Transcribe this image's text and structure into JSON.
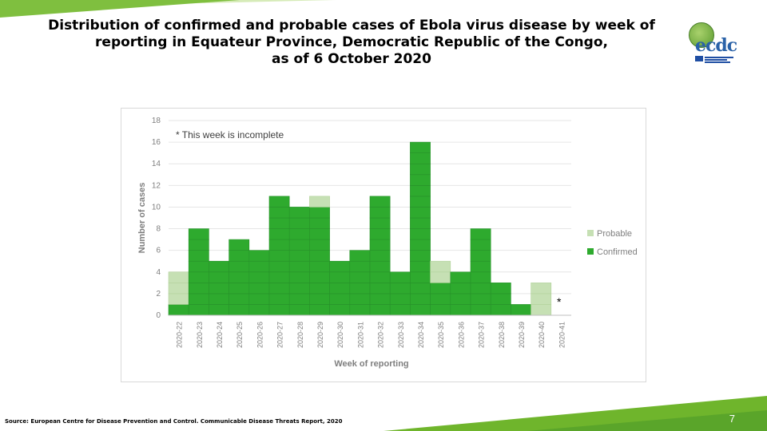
{
  "slide": {
    "title": "Distribution of confirmed and probable cases of Ebola virus disease by week of\nreporting in Equateur Province, Democratic Republic of the Congo,\nas of 6 October 2020",
    "source": "Source: European Centre for Disease Prevention and Control. Communicable Disease Threats Report, 2020",
    "page_number": "7",
    "logo_text": "ecdc"
  },
  "chart_data": {
    "type": "bar",
    "stacked": true,
    "title": "",
    "annotation": "* This week is incomplete",
    "incomplete_marker": "*",
    "xlabel": "Week of reporting",
    "ylabel": "Number of cases",
    "ylim": [
      0,
      18
    ],
    "yticks": [
      0,
      2,
      4,
      6,
      8,
      10,
      12,
      14,
      16,
      18
    ],
    "grid": true,
    "legend_position": "right",
    "categories": [
      "2020-22",
      "2020-23",
      "2020-24",
      "2020-25",
      "2020-26",
      "2020-27",
      "2020-28",
      "2020-29",
      "2020-30",
      "2020-31",
      "2020-32",
      "2020-33",
      "2020-34",
      "2020-35",
      "2020-36",
      "2020-37",
      "2020-38",
      "2020-39",
      "2020-40",
      "2020-41"
    ],
    "series": [
      {
        "name": "Confirmed",
        "color": "#2eaa2e",
        "values": [
          1,
          8,
          5,
          7,
          6,
          11,
          10,
          10,
          5,
          6,
          11,
          4,
          16,
          3,
          4,
          8,
          3,
          1,
          0,
          0
        ]
      },
      {
        "name": "Probable",
        "color": "#c6e0b4",
        "values": [
          3,
          0,
          0,
          0,
          0,
          0,
          0,
          1,
          0,
          0,
          0,
          0,
          0,
          2,
          0,
          0,
          0,
          0,
          3,
          0
        ]
      }
    ],
    "legend": [
      "Probable",
      "Confirmed"
    ]
  }
}
